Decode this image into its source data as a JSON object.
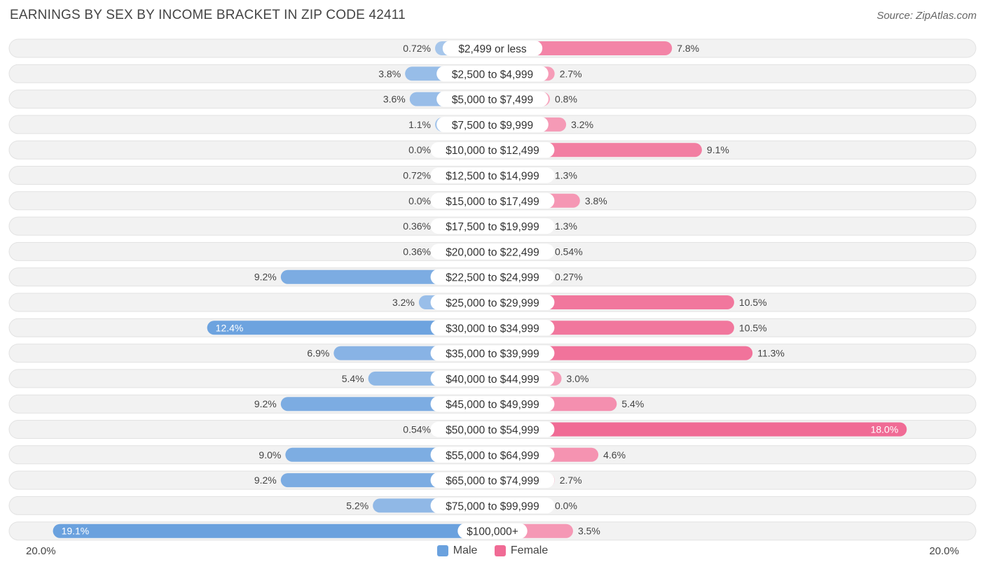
{
  "title": "EARNINGS BY SEX BY INCOME BRACKET IN ZIP CODE 42411",
  "source": "Source: ZipAtlas.com",
  "axis": {
    "left_label": "20.0%",
    "right_label": "20.0%"
  },
  "legend": {
    "male": "Male",
    "female": "Female"
  },
  "colors": {
    "male": "#6aa1de",
    "male_light": "#a9c8ec",
    "female": "#f06b95",
    "female_light": "#f7a9c1"
  },
  "chart_data": {
    "type": "bar",
    "orientation": "horizontal-diverging",
    "title": "EARNINGS BY SEX BY INCOME BRACKET IN ZIP CODE 42411",
    "xlim": [
      -20,
      20
    ],
    "categories": [
      "$2,499 or less",
      "$2,500 to $4,999",
      "$5,000 to $7,499",
      "$7,500 to $9,999",
      "$10,000 to $12,499",
      "$12,500 to $14,999",
      "$15,000 to $17,499",
      "$17,500 to $19,999",
      "$20,000 to $22,499",
      "$22,500 to $24,999",
      "$25,000 to $29,999",
      "$30,000 to $34,999",
      "$35,000 to $39,999",
      "$40,000 to $44,999",
      "$45,000 to $49,999",
      "$50,000 to $54,999",
      "$55,000 to $64,999",
      "$65,000 to $74,999",
      "$75,000 to $99,999",
      "$100,000+"
    ],
    "series": [
      {
        "name": "Male",
        "values": [
          0.72,
          3.8,
          3.6,
          1.1,
          0.0,
          0.72,
          0.0,
          0.36,
          0.36,
          9.2,
          3.2,
          12.4,
          6.9,
          5.4,
          9.2,
          0.54,
          9.0,
          9.2,
          5.2,
          19.1
        ],
        "labels": [
          "0.72%",
          "3.8%",
          "3.6%",
          "1.1%",
          "0.0%",
          "0.72%",
          "0.0%",
          "0.36%",
          "0.36%",
          "9.2%",
          "3.2%",
          "12.4%",
          "6.9%",
          "5.4%",
          "9.2%",
          "0.54%",
          "9.0%",
          "9.2%",
          "5.2%",
          "19.1%"
        ]
      },
      {
        "name": "Female",
        "values": [
          7.8,
          2.7,
          0.8,
          3.2,
          9.1,
          1.3,
          3.8,
          1.3,
          0.54,
          0.27,
          10.5,
          10.5,
          11.3,
          3.0,
          5.4,
          18.0,
          4.6,
          2.7,
          0.0,
          3.5
        ],
        "labels": [
          "7.8%",
          "2.7%",
          "0.8%",
          "3.2%",
          "9.1%",
          "1.3%",
          "3.8%",
          "1.3%",
          "0.54%",
          "0.27%",
          "10.5%",
          "10.5%",
          "11.3%",
          "3.0%",
          "5.4%",
          "18.0%",
          "4.6%",
          "2.7%",
          "0.0%",
          "3.5%"
        ]
      }
    ]
  }
}
